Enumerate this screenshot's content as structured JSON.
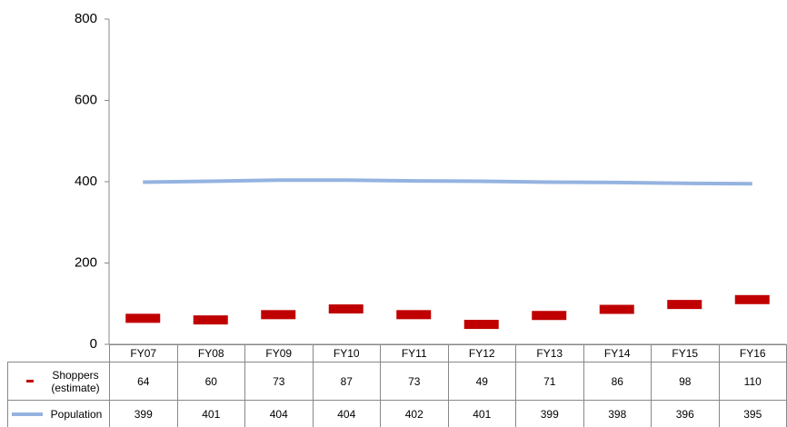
{
  "chart_data": {
    "type": "line",
    "categories": [
      "FY07",
      "FY08",
      "FY09",
      "FY10",
      "FY11",
      "FY12",
      "FY13",
      "FY14",
      "FY15",
      "FY16"
    ],
    "series": [
      {
        "name": "Shoppers (estimate)",
        "color": "#c00000",
        "marker": "dash",
        "values": [
          64,
          60,
          73,
          87,
          73,
          49,
          71,
          86,
          98,
          110
        ]
      },
      {
        "name": "Population",
        "color": "#95b3e0",
        "marker": "line",
        "values": [
          399,
          401,
          404,
          404,
          402,
          401,
          399,
          398,
          396,
          395
        ]
      }
    ],
    "ylim": [
      0,
      800
    ],
    "yticks": [
      0,
      200,
      400,
      600,
      800
    ],
    "grid": false,
    "data_table": true
  }
}
